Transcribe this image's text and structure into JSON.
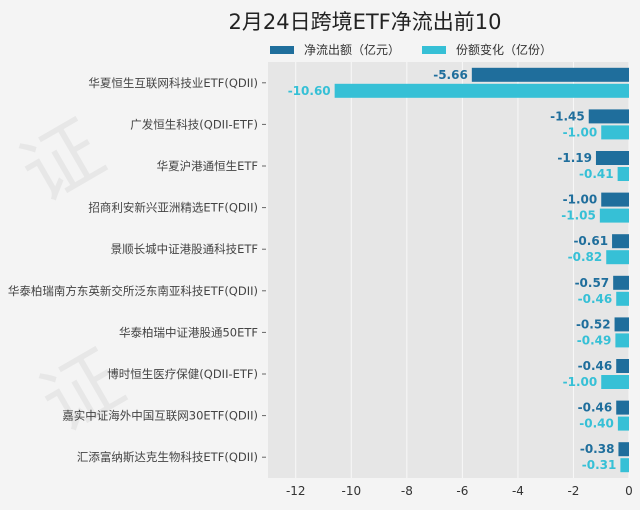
{
  "chart_data": {
    "type": "bar",
    "orientation": "horizontal",
    "title": "2月24日跨境ETF净流出前10",
    "categories": [
      "华夏恒生互联网科技业ETF(QDII)",
      "广发恒生科技(QDII-ETF)",
      "华夏沪港通恒生ETF",
      "招商利安新兴亚洲精选ETF(QDII)",
      "景顺长城中证港股通科技ETF",
      "华泰柏瑞南方东英新交所泛东南亚科技ETF(QDII)",
      "华泰柏瑞中证港股通50ETF",
      "博时恒生医疗保健(QDII-ETF)",
      "嘉实中证海外中国互联网30ETF(QDII)",
      "汇添富纳斯达克生物科技ETF(QDII)"
    ],
    "series": [
      {
        "name": "净流出额（亿元）",
        "color": "#1f6e9c",
        "values": [
          -5.66,
          -1.45,
          -1.19,
          -1.0,
          -0.61,
          -0.57,
          -0.52,
          -0.46,
          -0.46,
          -0.38
        ],
        "labels": [
          "-5.66",
          "-1.45",
          "-1.19",
          "-1.00",
          "-0.61",
          "-0.57",
          "-0.52",
          "-0.46",
          "-0.46",
          "-0.38"
        ]
      },
      {
        "name": "份额变化（亿份）",
        "color": "#36c0d6",
        "values": [
          -10.6,
          -1.0,
          -0.41,
          -1.05,
          -0.82,
          -0.46,
          -0.49,
          -1.0,
          -0.4,
          -0.31
        ],
        "labels": [
          "-10.60",
          "-1.00",
          "-0.41",
          "-1.05",
          "-0.82",
          "-0.46",
          "-0.49",
          "-1.00",
          "-0.40",
          "-0.31"
        ]
      }
    ],
    "xlim": [
      -13,
      0
    ],
    "xticks": [
      "-12",
      "-10",
      "-8",
      "-6",
      "-4",
      "-2",
      "0"
    ],
    "xtick_values": [
      -12,
      -10,
      -8,
      -6,
      -4,
      -2,
      0
    ],
    "legend_position": "top",
    "grid": true
  },
  "watermark": "证券之星"
}
